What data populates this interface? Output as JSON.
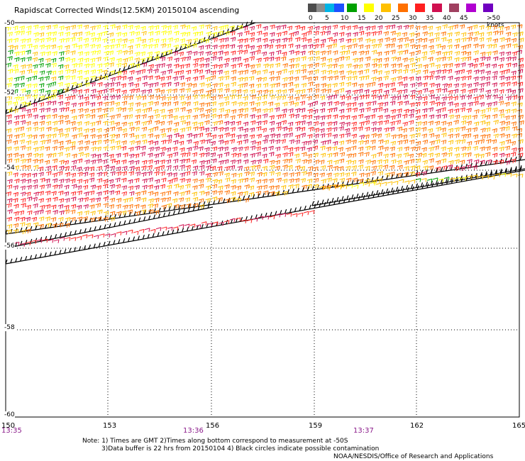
{
  "title": "Rapidscat Corrected Winds(12.5KM) 20150104 ascending",
  "scale": {
    "colors": [
      "#4d4d4d",
      "#8c8c8c",
      "#00b4e6",
      "#1e50ff",
      "#00a000",
      "#ffff00",
      "#ffc000",
      "#ff7000",
      "#ff2020",
      "#d01050",
      "#a04060",
      "#b000d0",
      "#7000c0"
    ],
    "labels": [
      "0",
      "5",
      "10",
      "15",
      "20",
      "25",
      "30",
      "35",
      "40",
      "45",
      ">50 knots"
    ]
  },
  "lat_labels": [
    "-50",
    "-52",
    "-54",
    "-56",
    "-58",
    "-60"
  ],
  "lon_labels": [
    "150",
    "153",
    "156",
    "159",
    "162",
    "165"
  ],
  "time_labels": [
    "13:35",
    "13:36",
    "13:37"
  ],
  "notes": {
    "line1": "Note: 1) Times are GMT 2)Times along bottom correspond to measurement at -50S",
    "line2": "3)Data buffer is 22 hrs from 20150104 4) Black circles indicate possible contamination",
    "line3": "NOAA/NESDIS/Office of Research and Applications"
  }
}
